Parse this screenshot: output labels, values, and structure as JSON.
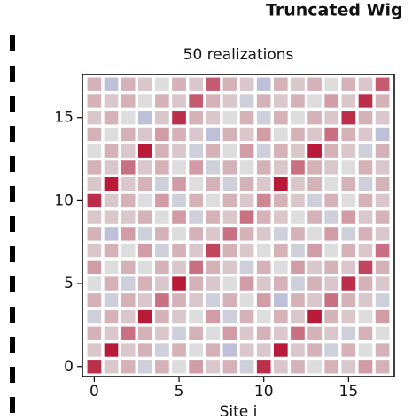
{
  "chart_data": {
    "type": "heatmap",
    "title": "Truncated Wig",
    "subtitle": "50 realizations",
    "xlabel": "Site i",
    "x": [
      0,
      1,
      2,
      3,
      4,
      5,
      6,
      7,
      8,
      9,
      10,
      11,
      12,
      13,
      14,
      15,
      16,
      17
    ],
    "y": [
      0,
      1,
      2,
      3,
      4,
      5,
      6,
      7,
      8,
      9,
      10,
      11,
      12,
      13,
      14,
      15,
      16,
      17
    ],
    "z": [
      [
        0.8,
        0.1,
        0.2,
        -0.1,
        0.2,
        0,
        0.3,
        0.1,
        0.2,
        -0.1,
        0.8,
        0.1,
        0.2,
        0,
        0.2,
        0.1,
        0.3,
        0.2
      ],
      [
        0.1,
        0.9,
        0.1,
        0.2,
        -0.1,
        0.2,
        0,
        0.2,
        -0.2,
        0.1,
        0.1,
        0.9,
        0.1,
        0.2,
        -0.1,
        0.2,
        0,
        0.2
      ],
      [
        0.2,
        0.1,
        0.5,
        0.2,
        0.1,
        -0.1,
        0.2,
        0,
        0.3,
        0.1,
        0.2,
        0.1,
        0.5,
        0.2,
        0.1,
        -0.1,
        0.2,
        0
      ],
      [
        -0.1,
        0.2,
        0.1,
        0.9,
        0.2,
        0.1,
        0,
        0.3,
        -0.1,
        0.2,
        0,
        0.2,
        0.1,
        0.9,
        0.2,
        0.1,
        0,
        0.3
      ],
      [
        0.2,
        -0.1,
        0.2,
        0.1,
        0.5,
        0.2,
        0.1,
        -0.1,
        0.2,
        0,
        0.3,
        -0.2,
        0.2,
        0.1,
        0.5,
        0.2,
        0.1,
        -0.1
      ],
      [
        0,
        0.2,
        -0.1,
        0.2,
        0.1,
        0.9,
        0.2,
        0.1,
        0,
        0.3,
        0.1,
        0.2,
        -0.1,
        0.2,
        0.1,
        0.8,
        0.2,
        0.1
      ],
      [
        0.3,
        0,
        0.2,
        0,
        0.2,
        0.1,
        0.5,
        0.2,
        0.1,
        -0.1,
        0.2,
        0,
        0.3,
        0.1,
        0.2,
        0.1,
        0.7,
        0.2
      ],
      [
        0.1,
        0.2,
        0,
        0.3,
        -0.1,
        0.2,
        0.1,
        0.7,
        0.2,
        0.1,
        0,
        0.2,
        -0.1,
        0.3,
        0,
        0.2,
        0.1,
        0.5
      ],
      [
        0.2,
        -0.2,
        0.3,
        -0.1,
        0.2,
        0,
        0.2,
        0.1,
        0.5,
        0.2,
        0.1,
        -0.1,
        0.2,
        0,
        0.3,
        -0.1,
        0.2,
        0.1
      ],
      [
        0.1,
        0.1,
        0.1,
        0.2,
        0,
        0.3,
        -0.1,
        0.2,
        0.1,
        0.5,
        0.2,
        0.1,
        0,
        0.2,
        -0.1,
        0.3,
        0.1,
        0.2
      ],
      [
        0.8,
        0.1,
        0.2,
        0,
        0.3,
        -0.1,
        0.2,
        0,
        0.2,
        0.1,
        0.4,
        0.2,
        0.1,
        -0.1,
        0.2,
        0,
        0.2,
        0.1
      ],
      [
        0.1,
        0.9,
        0.1,
        0.2,
        -0.1,
        0.3,
        0,
        0.2,
        -0.1,
        0.2,
        0.1,
        0.9,
        0.1,
        0.2,
        0,
        0.2,
        -0.1,
        0.2
      ],
      [
        0.2,
        0.1,
        0.5,
        0.1,
        0.2,
        0,
        0.3,
        -0.1,
        0.2,
        0,
        0.2,
        0.1,
        0.5,
        0.2,
        0.1,
        0,
        0.2,
        0.1
      ],
      [
        0,
        0.2,
        0.1,
        0.9,
        0.2,
        0.1,
        -0.1,
        0.2,
        0,
        0.3,
        -0.1,
        0.2,
        0.1,
        0.9,
        0.2,
        0.1,
        -0.1,
        0.2
      ],
      [
        0.2,
        0,
        0.2,
        0.1,
        0.3,
        0.2,
        0.1,
        -0.2,
        0.2,
        0.1,
        0.3,
        0,
        0.2,
        0.1,
        0.5,
        0.2,
        0.1,
        -0.2
      ],
      [
        0.1,
        0.2,
        0,
        -0.2,
        0.1,
        0.8,
        0.2,
        0.1,
        0,
        0.2,
        -0.1,
        0.2,
        0,
        0.2,
        0.1,
        0.8,
        0.2,
        0.1
      ],
      [
        0.2,
        0.1,
        0.2,
        0,
        0.2,
        0.1,
        0.6,
        0.2,
        0.1,
        -0.1,
        0.2,
        0.1,
        0.2,
        0,
        0.3,
        0.1,
        0.8,
        0.2
      ],
      [
        0.2,
        -0.2,
        0.2,
        0.1,
        0,
        0.2,
        0.1,
        0.6,
        0.2,
        0.1,
        -0.2,
        0.2,
        0.1,
        0.2,
        0,
        0.2,
        0.1,
        0.6
      ]
    ],
    "colormap": [
      "#3b4cc0",
      "#dddddd",
      "#b40426"
    ],
    "clim": [
      -1,
      1
    ],
    "xlim": [
      -0.7,
      17.7
    ],
    "ylim": [
      -0.6,
      17.6
    ],
    "xticks": [
      0,
      5,
      10,
      15
    ],
    "yticks": [
      0,
      5,
      10,
      15
    ]
  }
}
